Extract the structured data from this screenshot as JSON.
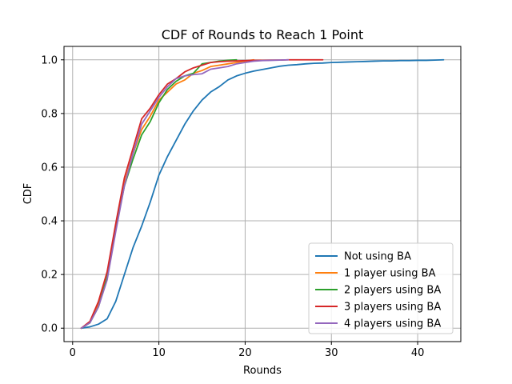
{
  "chart_data": {
    "type": "line",
    "title": "CDF of Rounds to Reach 1 Point",
    "xlabel": "Rounds",
    "ylabel": "CDF",
    "xlim": [
      -1,
      45
    ],
    "ylim": [
      -0.05,
      1.05
    ],
    "xticks": [
      0,
      10,
      20,
      30,
      40
    ],
    "yticks": [
      0.0,
      0.2,
      0.4,
      0.6,
      0.8,
      1.0
    ],
    "xtick_labels": [
      "0",
      "10",
      "20",
      "30",
      "40"
    ],
    "ytick_labels": [
      "0.0",
      "0.2",
      "0.4",
      "0.6",
      "0.8",
      "1.0"
    ],
    "grid": true,
    "legend_position": "lower-right",
    "series": [
      {
        "name": "Not using BA",
        "color": "#1f77b4",
        "x": [
          1,
          2,
          3,
          4,
          5,
          6,
          7,
          8,
          9,
          10,
          11,
          12,
          13,
          14,
          15,
          16,
          17,
          18,
          19,
          20,
          21,
          22,
          23,
          24,
          25,
          26,
          27,
          28,
          29,
          30,
          31,
          32,
          33,
          34,
          35,
          36,
          37,
          38,
          39,
          40,
          41,
          42,
          43
        ],
        "y": [
          0.0,
          0.005,
          0.015,
          0.035,
          0.1,
          0.2,
          0.3,
          0.38,
          0.47,
          0.57,
          0.64,
          0.7,
          0.76,
          0.81,
          0.85,
          0.88,
          0.9,
          0.925,
          0.94,
          0.95,
          0.958,
          0.964,
          0.97,
          0.976,
          0.98,
          0.982,
          0.985,
          0.987,
          0.988,
          0.99,
          0.991,
          0.992,
          0.993,
          0.994,
          0.995,
          0.996,
          0.996,
          0.997,
          0.997,
          0.998,
          0.998,
          0.999,
          1.0
        ]
      },
      {
        "name": "1 player using BA",
        "color": "#ff7f0e",
        "x": [
          1,
          2,
          3,
          4,
          5,
          6,
          7,
          8,
          9,
          10,
          11,
          12,
          13,
          14,
          15,
          16,
          17,
          18,
          19,
          20,
          21
        ],
        "y": [
          0.0,
          0.02,
          0.09,
          0.19,
          0.38,
          0.54,
          0.65,
          0.74,
          0.79,
          0.85,
          0.88,
          0.91,
          0.925,
          0.95,
          0.96,
          0.975,
          0.98,
          0.985,
          0.99,
          0.995,
          1.0
        ]
      },
      {
        "name": "2 players using BA",
        "color": "#2ca02c",
        "x": [
          1,
          2,
          3,
          4,
          5,
          6,
          7,
          8,
          9,
          10,
          11,
          12,
          13,
          14,
          15,
          16,
          17,
          18,
          19
        ],
        "y": [
          0.0,
          0.02,
          0.08,
          0.19,
          0.37,
          0.53,
          0.63,
          0.72,
          0.77,
          0.84,
          0.89,
          0.92,
          0.94,
          0.95,
          0.985,
          0.99,
          0.995,
          0.998,
          1.0
        ]
      },
      {
        "name": "3 players using BA",
        "color": "#d62728",
        "x": [
          1,
          2,
          3,
          4,
          5,
          6,
          7,
          8,
          9,
          10,
          11,
          12,
          13,
          14,
          15,
          16,
          17,
          18,
          19,
          20,
          21,
          22,
          23,
          24,
          25,
          26,
          27,
          28,
          29
        ],
        "y": [
          0.0,
          0.025,
          0.1,
          0.21,
          0.39,
          0.56,
          0.67,
          0.78,
          0.82,
          0.87,
          0.91,
          0.93,
          0.955,
          0.97,
          0.98,
          0.99,
          0.993,
          0.995,
          0.996,
          0.997,
          0.998,
          0.998,
          0.999,
          0.999,
          1.0,
          1.0,
          1.0,
          1.0,
          1.0
        ]
      },
      {
        "name": "4 players using BA",
        "color": "#9467bd",
        "x": [
          1,
          2,
          3,
          4,
          5,
          6,
          7,
          8,
          9,
          10,
          11,
          12,
          13,
          14,
          15,
          16,
          17,
          18,
          19,
          20,
          21,
          22,
          23,
          24,
          25
        ],
        "y": [
          0.0,
          0.02,
          0.08,
          0.18,
          0.36,
          0.53,
          0.65,
          0.76,
          0.81,
          0.86,
          0.9,
          0.93,
          0.94,
          0.945,
          0.948,
          0.965,
          0.97,
          0.975,
          0.985,
          0.99,
          0.995,
          0.997,
          0.998,
          0.999,
          1.0
        ]
      }
    ]
  }
}
